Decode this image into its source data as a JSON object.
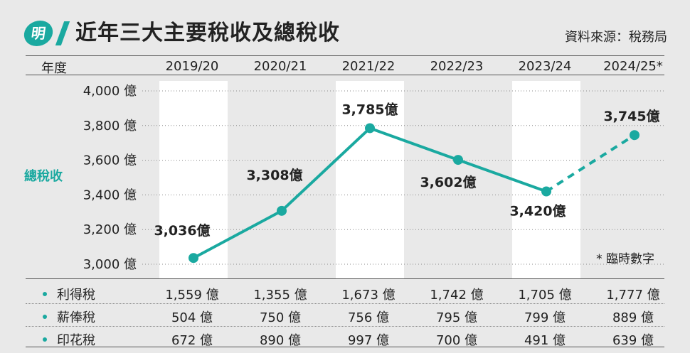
{
  "header": {
    "logo_char": "明",
    "title": "近年三大主要稅收及總稅收",
    "source": "資料來源：稅務局"
  },
  "table_header": {
    "year_label": "年度",
    "years": [
      "2019/20",
      "2020/21",
      "2021/22",
      "2022/23",
      "2023/24",
      "2024/25*"
    ]
  },
  "colors": {
    "accent": "#1aa9a0",
    "column_band": "#ffffff",
    "background": "#e9e9e9"
  },
  "chart_data": {
    "type": "line",
    "title": "總稅收",
    "ylabel": "總稅收",
    "x": [
      "2019/20",
      "2020/21",
      "2021/22",
      "2022/23",
      "2023/24",
      "2024/25*"
    ],
    "series": [
      {
        "name": "總稅收",
        "values": [
          3036,
          3308,
          3785,
          3602,
          3420,
          3745
        ],
        "labels": [
          "3,036億",
          "3,308億",
          "3,785億",
          "3,602億",
          "3,420億",
          "3,745億"
        ],
        "estimated_from_index": 5,
        "color": "#1aa9a0"
      }
    ],
    "ylim": [
      3000,
      4000
    ],
    "yticks": [
      4000,
      3800,
      3600,
      3400,
      3200,
      3000
    ],
    "ytick_labels": [
      "4,000 億",
      "3,800 億",
      "3,600 億",
      "3,400 億",
      "3,200 億",
      "3,000 億"
    ],
    "grid": "horizontal-dotted",
    "note": "* 臨時數字"
  },
  "tax_rows": [
    {
      "label": "利得稅",
      "values": [
        "1,559 億",
        "1,355 億",
        "1,673 億",
        "1,742 億",
        "1,705 億",
        "1,777 億"
      ]
    },
    {
      "label": "薪俸稅",
      "values": [
        "504 億",
        "750 億",
        "756 億",
        "795 億",
        "799 億",
        "889 億"
      ]
    },
    {
      "label": "印花稅",
      "values": [
        "672 億",
        "890 億",
        "997 億",
        "700 億",
        "491 億",
        "639 億"
      ]
    }
  ]
}
